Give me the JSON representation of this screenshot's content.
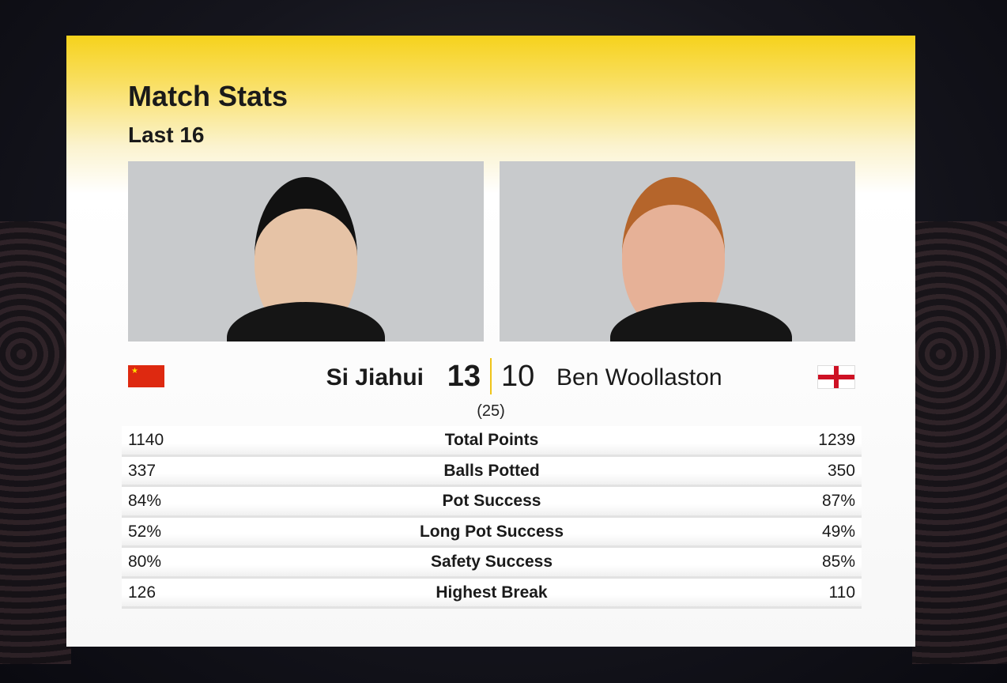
{
  "header": {
    "title": "Match Stats",
    "subtitle": "Last 16"
  },
  "players": [
    {
      "name": "Si Jiahui",
      "score": "13",
      "flag": "china-flag-icon"
    },
    {
      "name": "Ben Woollaston",
      "score": "10",
      "flag": "england-flag-icon"
    }
  ],
  "frames": "(25)",
  "colors": {
    "accent": "#f6d21c",
    "divider": "#f0c419"
  },
  "stats": [
    {
      "label": "Total Points",
      "left": "1140",
      "right": "1239"
    },
    {
      "label": "Balls Potted",
      "left": "337",
      "right": "350"
    },
    {
      "label": "Pot Success",
      "left": "84%",
      "right": "87%"
    },
    {
      "label": "Long Pot Success",
      "left": "52%",
      "right": "49%"
    },
    {
      "label": "Safety Success",
      "left": "80%",
      "right": "85%"
    },
    {
      "label": "Highest Break",
      "left": "126",
      "right": "110"
    }
  ]
}
